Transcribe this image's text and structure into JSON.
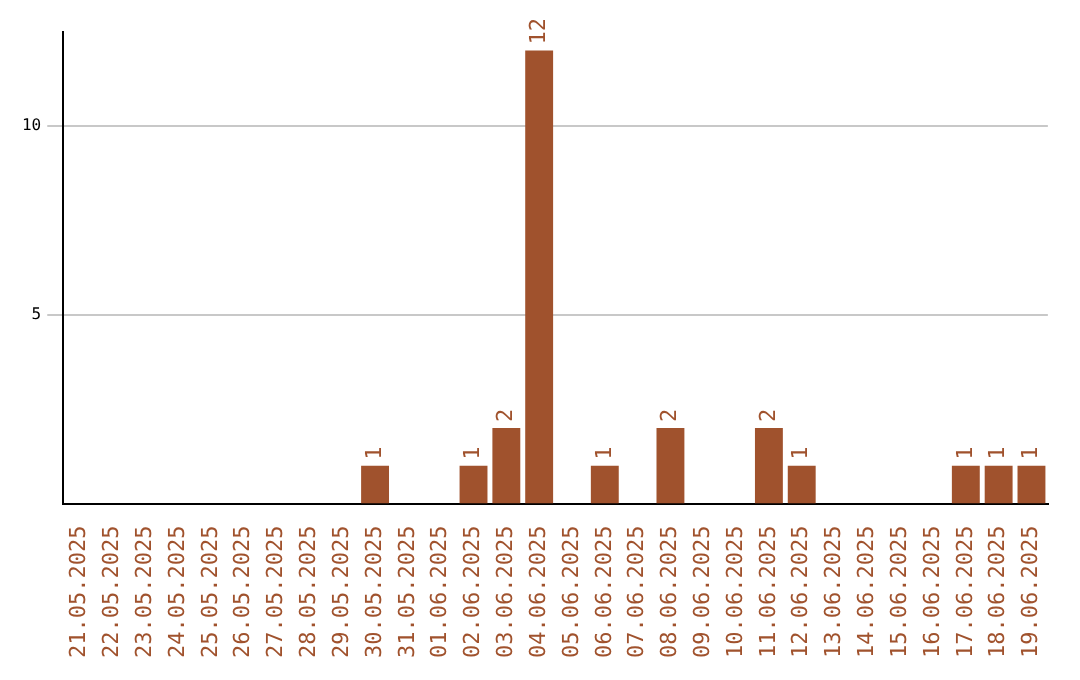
{
  "chart_data": {
    "type": "bar",
    "categories": [
      "21.05.2025",
      "22.05.2025",
      "23.05.2025",
      "24.05.2025",
      "25.05.2025",
      "26.05.2025",
      "27.05.2025",
      "28.05.2025",
      "29.05.2025",
      "30.05.2025",
      "31.05.2025",
      "01.06.2025",
      "02.06.2025",
      "03.06.2025",
      "04.06.2025",
      "05.06.2025",
      "06.06.2025",
      "07.06.2025",
      "08.06.2025",
      "09.06.2025",
      "10.06.2025",
      "11.06.2025",
      "12.06.2025",
      "13.06.2025",
      "14.06.2025",
      "15.06.2025",
      "16.06.2025",
      "17.06.2025",
      "18.06.2025",
      "19.06.2025"
    ],
    "values": [
      0,
      0,
      0,
      0,
      0,
      0,
      0,
      0,
      0,
      1,
      0,
      0,
      1,
      2,
      12,
      0,
      1,
      0,
      2,
      0,
      0,
      2,
      1,
      0,
      0,
      0,
      0,
      1,
      1,
      1
    ],
    "value_labels": [
      null,
      null,
      null,
      null,
      null,
      null,
      null,
      null,
      null,
      "1",
      null,
      null,
      "1",
      "2",
      "12",
      null,
      "1",
      null,
      "2",
      null,
      null,
      "2",
      "1",
      null,
      null,
      null,
      null,
      "1",
      "1",
      "1"
    ],
    "color": "#a0522d",
    "ylim": [
      0,
      12.5
    ],
    "yticks": [
      5,
      10
    ],
    "grid": "y",
    "legend": false
  }
}
